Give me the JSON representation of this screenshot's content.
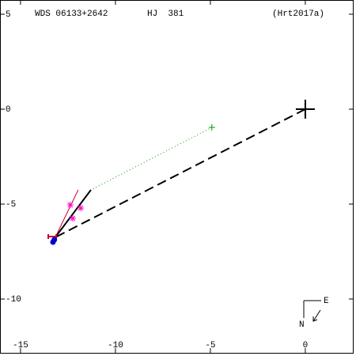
{
  "chart_data": {
    "type": "scatter",
    "header": [
      "WDS 06133+2642",
      "HJ  381",
      "(Hrt2017a)"
    ],
    "xlim": [
      -16.08,
      2.67
    ],
    "ylim": [
      -13,
      5.75
    ],
    "xticks": [
      -15,
      -10,
      -5,
      0
    ],
    "yticks": [
      5,
      0,
      -5,
      -10
    ],
    "series": [
      {
        "marker": "big-plus",
        "color": "#000000",
        "x": [
          0
        ],
        "y": [
          0
        ]
      },
      {
        "line": "dashed",
        "color": "#000000",
        "x": [
          0,
          -13.17
        ],
        "y": [
          0,
          -6.75
        ]
      },
      {
        "line": "dotted",
        "color": "#009900",
        "x": [
          -4.92,
          -11.29
        ],
        "y": [
          -0.96,
          -4.25
        ]
      },
      {
        "marker": "plus",
        "color": "#009900",
        "x": [
          -4.92
        ],
        "y": [
          -0.96
        ]
      },
      {
        "line": "solid",
        "color": "#000000",
        "x": [
          -13.17,
          -11.29
        ],
        "y": [
          -6.75,
          -4.25
        ]
      },
      {
        "line": "thin",
        "color": "#cc0033",
        "x": [
          -13.17,
          -11.96
        ],
        "y": [
          -6.75,
          -4.25
        ]
      },
      {
        "marker": "asterisk",
        "color": "#ff00cc",
        "x": [
          -12.38,
          -12.25,
          -11.83
        ],
        "y": [
          -5.04,
          -5.75,
          -5.21
        ]
      },
      {
        "marker": "h-bar",
        "color": "#cc0033",
        "x": [
          -13.33
        ],
        "y": [
          -6.71
        ]
      },
      {
        "marker": "dot",
        "color": "#0000cc",
        "x": [
          -13.29,
          -13.22
        ],
        "y": [
          -7.0,
          -6.88
        ]
      }
    ],
    "compass": {
      "north": "N",
      "east": "E"
    }
  }
}
